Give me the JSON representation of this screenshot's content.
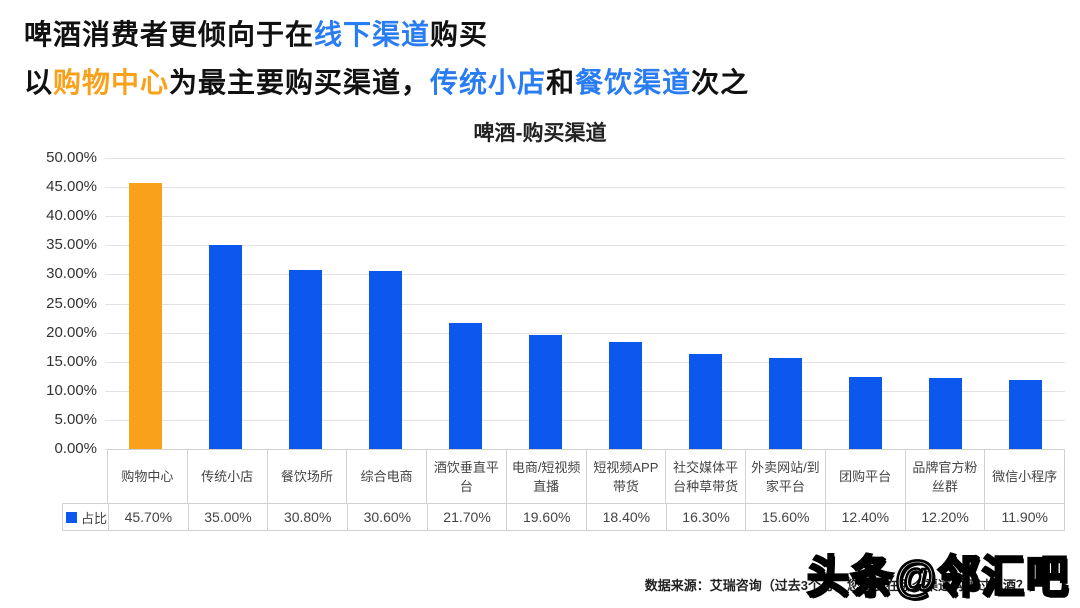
{
  "headline": {
    "line1_segments": [
      {
        "text": "啤酒消费者更倾向于在",
        "color": "black"
      },
      {
        "text": "线下渠道",
        "color": "blue"
      },
      {
        "text": "购买",
        "color": "black"
      }
    ],
    "line2_segments": [
      {
        "text": "以",
        "color": "black"
      },
      {
        "text": "购物中心",
        "color": "orange"
      },
      {
        "text": "为最主要购买渠道，",
        "color": "black"
      },
      {
        "text": "传统小店",
        "color": "blue"
      },
      {
        "text": "和",
        "color": "black"
      },
      {
        "text": "餐饮渠道",
        "color": "blue"
      },
      {
        "text": "次之",
        "color": "black"
      }
    ]
  },
  "chart_data": {
    "type": "bar",
    "title": "啤酒-购买渠道",
    "categories": [
      "购物中心",
      "传统小店",
      "餐饮场所",
      "综合电商",
      "酒饮垂直平台",
      "电商/短视频直播",
      "短视频APP带货",
      "社交媒体平台种草带货",
      "外卖网站/到家平台",
      "团购平台",
      "品牌官方粉丝群",
      "微信小程序"
    ],
    "series": [
      {
        "name": "占比",
        "values": [
          45.7,
          35.0,
          30.8,
          30.6,
          21.7,
          19.6,
          18.4,
          16.3,
          15.6,
          12.4,
          12.2,
          11.9
        ]
      }
    ],
    "value_labels": [
      "45.70%",
      "35.00%",
      "30.80%",
      "30.60%",
      "21.70%",
      "19.60%",
      "18.40%",
      "16.30%",
      "15.60%",
      "12.40%",
      "12.20%",
      "11.90%"
    ],
    "ylabel": "",
    "xlabel": "",
    "ylim": [
      0,
      50
    ],
    "ytick_step": 5,
    "ytick_labels": [
      "50.00%",
      "45.00%",
      "40.00%",
      "35.00%",
      "30.00%",
      "25.00%",
      "20.00%",
      "15.00%",
      "10.00%",
      "5.00%",
      "0.00%"
    ],
    "grid": true,
    "legend_label": "占比",
    "legend_position": "table-left",
    "bar_color": "#0C58EF",
    "highlight_bar_color": "#F9A11B",
    "highlight_index": 0
  },
  "footer": {
    "source": "数据来源：艾瑞咨询（过去3个月，您更多在哪个渠道购买过啤酒？）"
  },
  "watermark": "头条@邻汇吧",
  "colors": {
    "accent_blue": "#2A7CF2",
    "accent_orange": "#F9A11B",
    "bar_blue": "#0C58EF",
    "gridline": "#E3E3E3",
    "table_border": "#D2D2D2",
    "text_dark": "#111111"
  }
}
